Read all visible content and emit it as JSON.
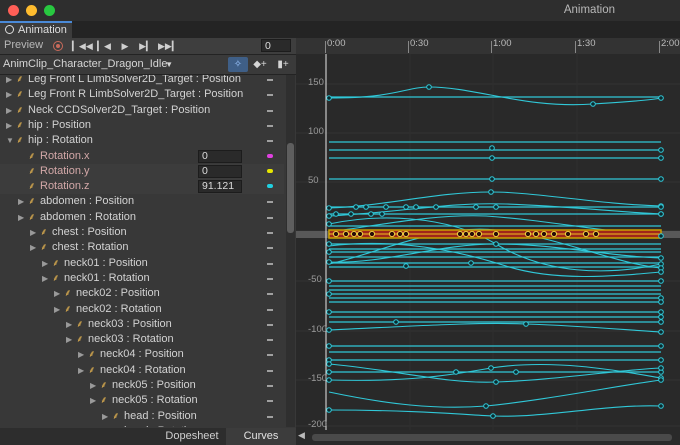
{
  "window": {
    "title": "Animation"
  },
  "tab": {
    "label": "Animation"
  },
  "colors": {
    "curve": "#30c8d8",
    "selected_curve_fill": "#a0261a",
    "selected_curve_stroke": "#c8a200",
    "x_channel": "#e040e0",
    "y_channel": "#e6e600",
    "z_channel": "#20d0e0",
    "tab_accent": "#4a8ad8"
  },
  "toolbar": {
    "preview_label": "Preview",
    "frame_value": "0",
    "icons": [
      "record-icon",
      "first-key-icon",
      "prev-key-icon",
      "play-icon",
      "next-key-icon",
      "last-key-icon"
    ]
  },
  "clip": {
    "name": "AnimClip_Character_Dragon_Idle"
  },
  "tree": [
    {
      "label": "Leg Front L LimbSolver2D_Target : Position",
      "indent": 1,
      "arrow": "right"
    },
    {
      "label": "Leg Front R LimbSolver2D_Target : Position",
      "indent": 1,
      "arrow": "right"
    },
    {
      "label": "Neck CCDSolver2D_Target : Position",
      "indent": 1,
      "arrow": "right"
    },
    {
      "label": "hip : Position",
      "indent": 1,
      "arrow": "right"
    },
    {
      "label": "hip : Rotation",
      "indent": 1,
      "arrow": "down"
    },
    {
      "label": "Rotation.x",
      "indent": 2,
      "sub": true,
      "value": "0",
      "channel": "x"
    },
    {
      "label": "Rotation.y",
      "indent": 2,
      "sub": true,
      "value": "0",
      "channel": "y"
    },
    {
      "label": "Rotation.z",
      "indent": 2,
      "sub": true,
      "value": "91.121",
      "channel": "z"
    },
    {
      "label": "abdomen : Position",
      "indent": 2,
      "arrow": "right"
    },
    {
      "label": "abdomen : Rotation",
      "indent": 2,
      "arrow": "right"
    },
    {
      "label": "chest : Position",
      "indent": 3,
      "arrow": "right"
    },
    {
      "label": "chest : Rotation",
      "indent": 3,
      "arrow": "right"
    },
    {
      "label": "neck01 : Position",
      "indent": 4,
      "arrow": "right"
    },
    {
      "label": "neck01 : Rotation",
      "indent": 4,
      "arrow": "right"
    },
    {
      "label": "neck02 : Position",
      "indent": 5,
      "arrow": "right"
    },
    {
      "label": "neck02 : Rotation",
      "indent": 5,
      "arrow": "right"
    },
    {
      "label": "neck03 : Position",
      "indent": 6,
      "arrow": "right"
    },
    {
      "label": "neck03 : Rotation",
      "indent": 6,
      "arrow": "right"
    },
    {
      "label": "neck04 : Position",
      "indent": 7,
      "arrow": "right"
    },
    {
      "label": "neck04 : Rotation",
      "indent": 7,
      "arrow": "right"
    },
    {
      "label": "neck05 : Position",
      "indent": 8,
      "arrow": "right"
    },
    {
      "label": "neck05 : Rotation",
      "indent": 8,
      "arrow": "right"
    },
    {
      "label": "head : Position",
      "indent": 9,
      "arrow": "right"
    },
    {
      "label": "head : Rotation",
      "indent": 9,
      "arrow": "right"
    }
  ],
  "bottom_tabs": {
    "dopesheet": "Dopesheet",
    "curves": "Curves"
  },
  "timeline": {
    "ticks": [
      "0:00",
      "0:30",
      "1:00",
      "1:30",
      "2:00"
    ]
  },
  "yaxis": {
    "labels": [
      "150",
      "100",
      "50",
      "-50",
      "-100",
      "-150",
      "-200"
    ]
  }
}
